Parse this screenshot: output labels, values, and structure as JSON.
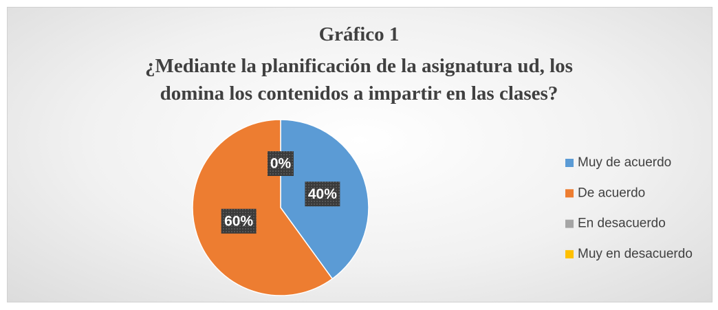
{
  "chart_data": {
    "type": "pie",
    "title": "Gráfico 1",
    "subtitle": "¿Mediante la planificación de la asignatura ud, los domina los contenidos a impartir en las clases?",
    "categories": [
      "Muy de acuerdo",
      "De acuerdo",
      "En desacuerdo",
      "Muy en desacuerdo"
    ],
    "values": [
      40,
      60,
      0,
      0
    ],
    "value_labels": [
      "40%",
      "60%",
      "0%",
      null
    ],
    "colors": [
      "#5b9bd5",
      "#ed7d31",
      "#a5a5a5",
      "#ffc000"
    ],
    "legend": "right"
  }
}
